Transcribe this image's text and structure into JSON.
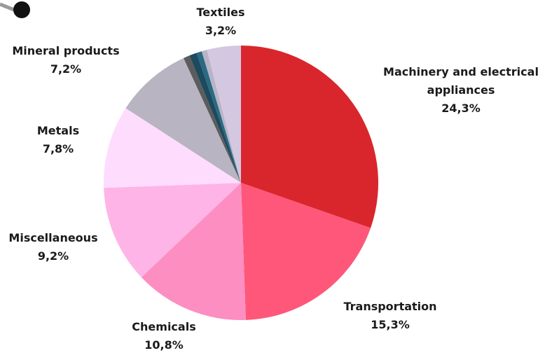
{
  "chart_data": {
    "type": "pie",
    "title": "",
    "slices": [
      {
        "label": "Machinery and electrical appliances",
        "value_label": "24,3%",
        "value": 24.3,
        "color": "#d9262c"
      },
      {
        "label": "Transportation",
        "value_label": "15,3%",
        "value": 15.3,
        "color": "#fe577a"
      },
      {
        "label": "Chemicals",
        "value_label": "10,8%",
        "value": 10.8,
        "color": "#fd8ec2"
      },
      {
        "label": "Miscellaneous",
        "value_label": "9,2%",
        "value": 9.2,
        "color": "#feb4e6"
      },
      {
        "label": "Metals",
        "value_label": "7,8%",
        "value": 7.8,
        "color": "#fedcfe"
      },
      {
        "label": "Mineral products",
        "value_label": "7,2%",
        "value": 7.2,
        "color": "#b8b4c2"
      },
      {
        "label": "",
        "value_label": "",
        "value": 0.6,
        "color": "#5c5c5c"
      },
      {
        "label": "",
        "value_label": "",
        "value": 0.7,
        "color": "#1d4a5e"
      },
      {
        "label": "",
        "value_label": "",
        "value": 0.5,
        "color": "#2a6a82"
      },
      {
        "label": "",
        "value_label": "",
        "value": 0.5,
        "color": "#b8b4c8"
      },
      {
        "label": "Textiles",
        "value_label": "3,2%",
        "value": 3.2,
        "color": "#d4c8e0"
      }
    ]
  },
  "decoration": {
    "marker_color": "#111111",
    "connector_color": "#9a9a9a"
  }
}
